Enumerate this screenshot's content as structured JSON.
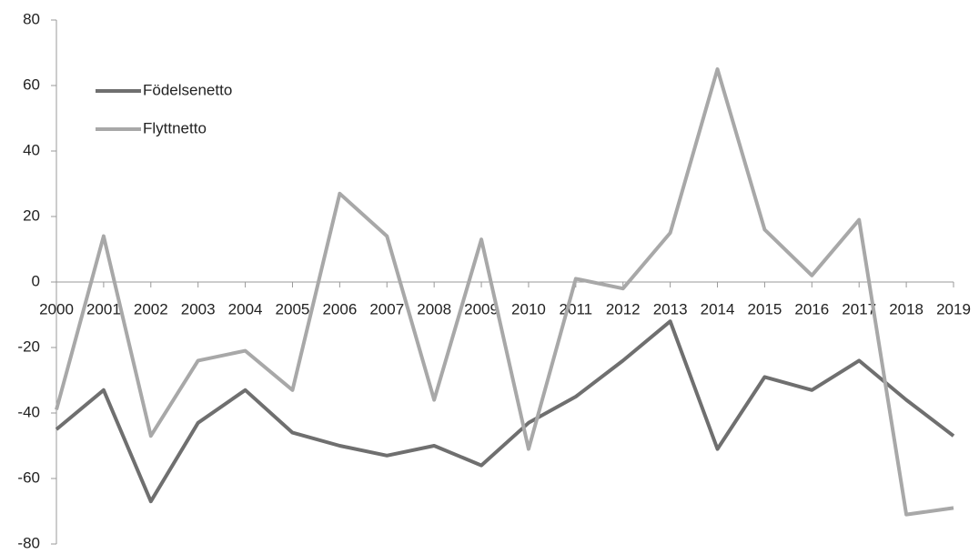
{
  "chart_data": {
    "type": "line",
    "categories": [
      "2000",
      "2001",
      "2002",
      "2003",
      "2004",
      "2005",
      "2006",
      "2007",
      "2008",
      "2009",
      "2010",
      "2011",
      "2012",
      "2013",
      "2014",
      "2015",
      "2016",
      "2017",
      "2018",
      "2019"
    ],
    "series": [
      {
        "name": "Födelsenetto",
        "color": "#6f6f6f",
        "values": [
          -45,
          -33,
          -67,
          -43,
          -33,
          -46,
          -50,
          -53,
          -50,
          -56,
          -43,
          -35,
          -24,
          -12,
          -51,
          -29,
          -33,
          -24,
          -36,
          -47
        ]
      },
      {
        "name": "Flyttnetto",
        "color": "#a8a8a8",
        "values": [
          -39,
          14,
          -47,
          -24,
          -21,
          -33,
          27,
          14,
          -36,
          13,
          -51,
          1,
          -2,
          15,
          65,
          16,
          2,
          19,
          -71,
          -69
        ]
      }
    ],
    "ylim": [
      -80,
      80
    ],
    "yticks": [
      -80,
      -60,
      -40,
      -20,
      0,
      20,
      40,
      60,
      80
    ],
    "grid": false,
    "legend": "upper left"
  }
}
